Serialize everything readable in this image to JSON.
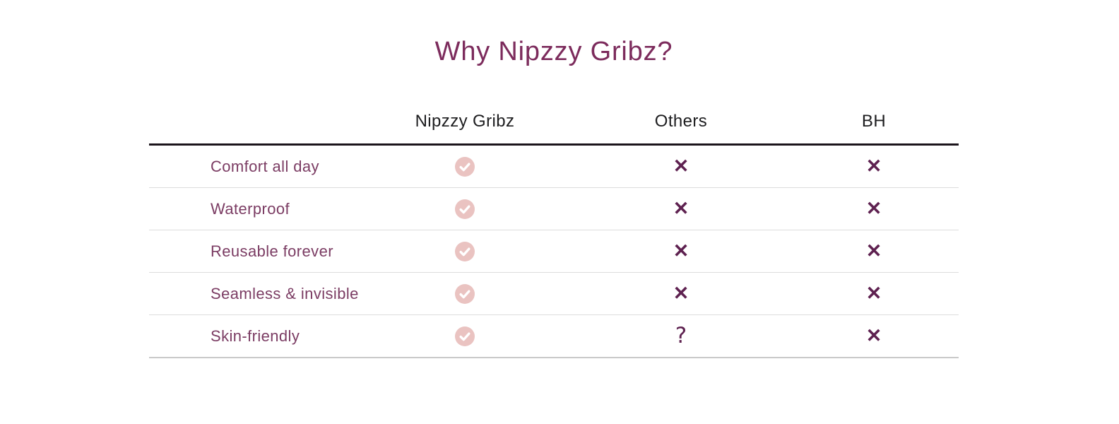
{
  "page_title": "Why Nipzzy Gribz?",
  "table": {
    "headers": [
      "Nipzzy Gribz",
      "Others",
      "BH"
    ],
    "rows": [
      {
        "feature": "Comfort all day",
        "values": [
          "check",
          "cross",
          "cross"
        ]
      },
      {
        "feature": "Waterproof",
        "values": [
          "check",
          "cross",
          "cross"
        ]
      },
      {
        "feature": "Reusable forever",
        "values": [
          "check",
          "cross",
          "cross"
        ]
      },
      {
        "feature": "Seamless & invisible",
        "values": [
          "check",
          "cross",
          "cross"
        ]
      },
      {
        "feature": "Skin-friendly",
        "values": [
          "check",
          "question",
          "cross"
        ]
      }
    ],
    "glyphs": {
      "cross": "✕",
      "question": "?"
    }
  },
  "colors": {
    "title": "#7c2b5c",
    "feature_label": "#7b3c63",
    "mark": "#5e2150",
    "check_circle": "#eac3c1",
    "check_stroke": "#ffffff",
    "header_text": "#1d1d1f"
  }
}
